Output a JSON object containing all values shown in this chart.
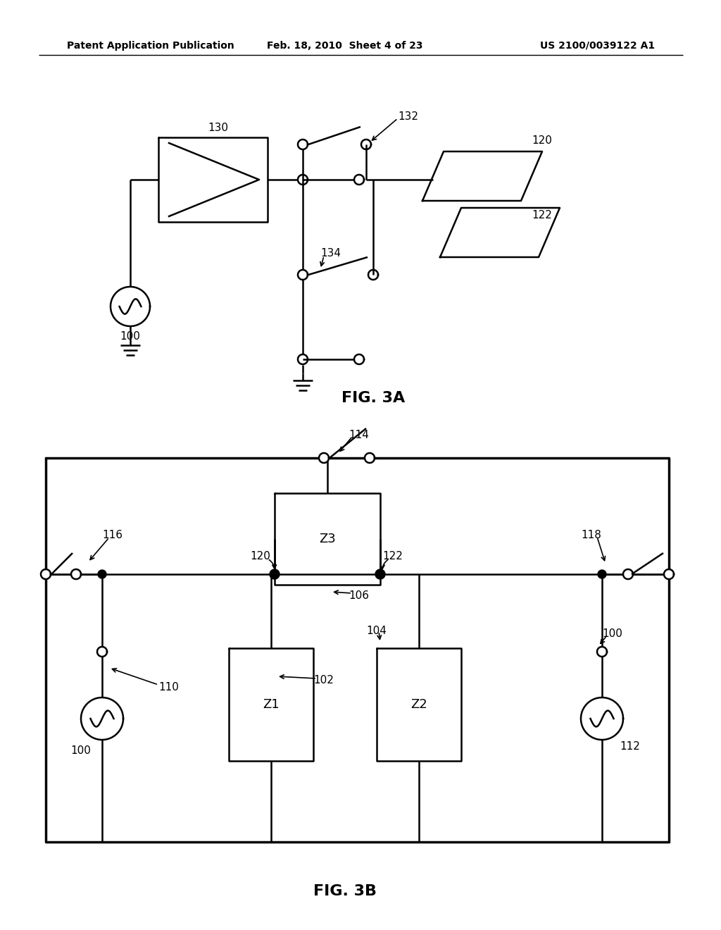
{
  "bg_color": "#ffffff",
  "line_color": "#000000",
  "header_left": "Patent Application Publication",
  "header_mid": "Feb. 18, 2010  Sheet 4 of 23",
  "header_right": "US 2100/0039122 A1",
  "fig3a_label": "FIG. 3A",
  "fig3b_label": "FIG. 3B"
}
